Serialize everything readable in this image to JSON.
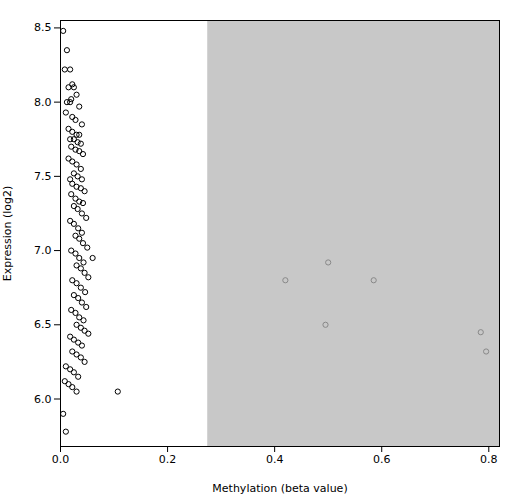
{
  "chart_data": {
    "type": "scatter",
    "xlabel": "Methylation (beta value)",
    "ylabel": "Expression (log2)",
    "xlim": [
      0,
      0.82
    ],
    "ylim": [
      5.68,
      8.55
    ],
    "xticks": [
      {
        "value": 0.0,
        "label": "0.0"
      },
      0.2,
      0.4,
      0.6,
      0.8
    ],
    "yticks": [
      {
        "value": 6.0,
        "label": "6.0"
      },
      6.5,
      {
        "value": 7.0,
        "label": "7.0"
      },
      7.5,
      {
        "value": 8.0,
        "label": "8.0"
      },
      8.5
    ],
    "grid": false,
    "marker": "hollow_circle",
    "shaded_region": {
      "x": [
        0.275,
        0.82
      ],
      "color": "#c8c8c8"
    },
    "series": [
      {
        "color": "#000000",
        "x": [
          0.005,
          0.012,
          0.008,
          0.018,
          0.022,
          0.015,
          0.025,
          0.03,
          0.02,
          0.012,
          0.018,
          0.035,
          0.01,
          0.022,
          0.028,
          0.04,
          0.015,
          0.022,
          0.03,
          0.035,
          0.018,
          0.025,
          0.032,
          0.038,
          0.02,
          0.028,
          0.035,
          0.042,
          0.015,
          0.022,
          0.03,
          0.038,
          0.025,
          0.032,
          0.04,
          0.018,
          0.022,
          0.03,
          0.038,
          0.045,
          0.02,
          0.028,
          0.035,
          0.042,
          0.025,
          0.032,
          0.04,
          0.048,
          0.018,
          0.025,
          0.033,
          0.04,
          0.028,
          0.035,
          0.042,
          0.05,
          0.02,
          0.028,
          0.035,
          0.043,
          0.03,
          0.038,
          0.045,
          0.052,
          0.022,
          0.03,
          0.038,
          0.046,
          0.025,
          0.033,
          0.04,
          0.048,
          0.02,
          0.028,
          0.035,
          0.043,
          0.03,
          0.038,
          0.045,
          0.052,
          0.018,
          0.025,
          0.033,
          0.04,
          0.022,
          0.03,
          0.038,
          0.045,
          0.01,
          0.018,
          0.025,
          0.033,
          0.008,
          0.015,
          0.022,
          0.03,
          0.005,
          0.01,
          0.107,
          0.06
        ],
        "values": [
          8.48,
          8.35,
          8.22,
          8.22,
          8.12,
          8.1,
          8.1,
          8.05,
          8.02,
          8.0,
          8.0,
          7.97,
          7.93,
          7.9,
          7.88,
          7.85,
          7.82,
          7.8,
          7.78,
          7.78,
          7.75,
          7.75,
          7.73,
          7.72,
          7.7,
          7.68,
          7.67,
          7.65,
          7.62,
          7.6,
          7.58,
          7.55,
          7.52,
          7.5,
          7.48,
          7.48,
          7.45,
          7.43,
          7.42,
          7.4,
          7.38,
          7.35,
          7.33,
          7.32,
          7.3,
          7.28,
          7.25,
          7.22,
          7.2,
          7.18,
          7.15,
          7.12,
          7.1,
          7.08,
          7.05,
          7.02,
          7.0,
          6.98,
          6.95,
          6.92,
          6.9,
          6.88,
          6.85,
          6.82,
          6.8,
          6.78,
          6.75,
          6.72,
          6.7,
          6.68,
          6.65,
          6.62,
          6.6,
          6.58,
          6.55,
          6.53,
          6.5,
          6.48,
          6.46,
          6.44,
          6.42,
          6.4,
          6.38,
          6.36,
          6.32,
          6.3,
          6.28,
          6.25,
          6.22,
          6.2,
          6.18,
          6.15,
          6.12,
          6.1,
          6.08,
          6.05,
          5.9,
          5.78,
          6.05,
          6.95
        ]
      },
      {
        "color": "#888888",
        "x": [
          0.42,
          0.5,
          0.585,
          0.495,
          0.785,
          0.795
        ],
        "values": [
          6.8,
          6.92,
          6.8,
          6.5,
          6.45,
          6.32
        ]
      }
    ]
  }
}
